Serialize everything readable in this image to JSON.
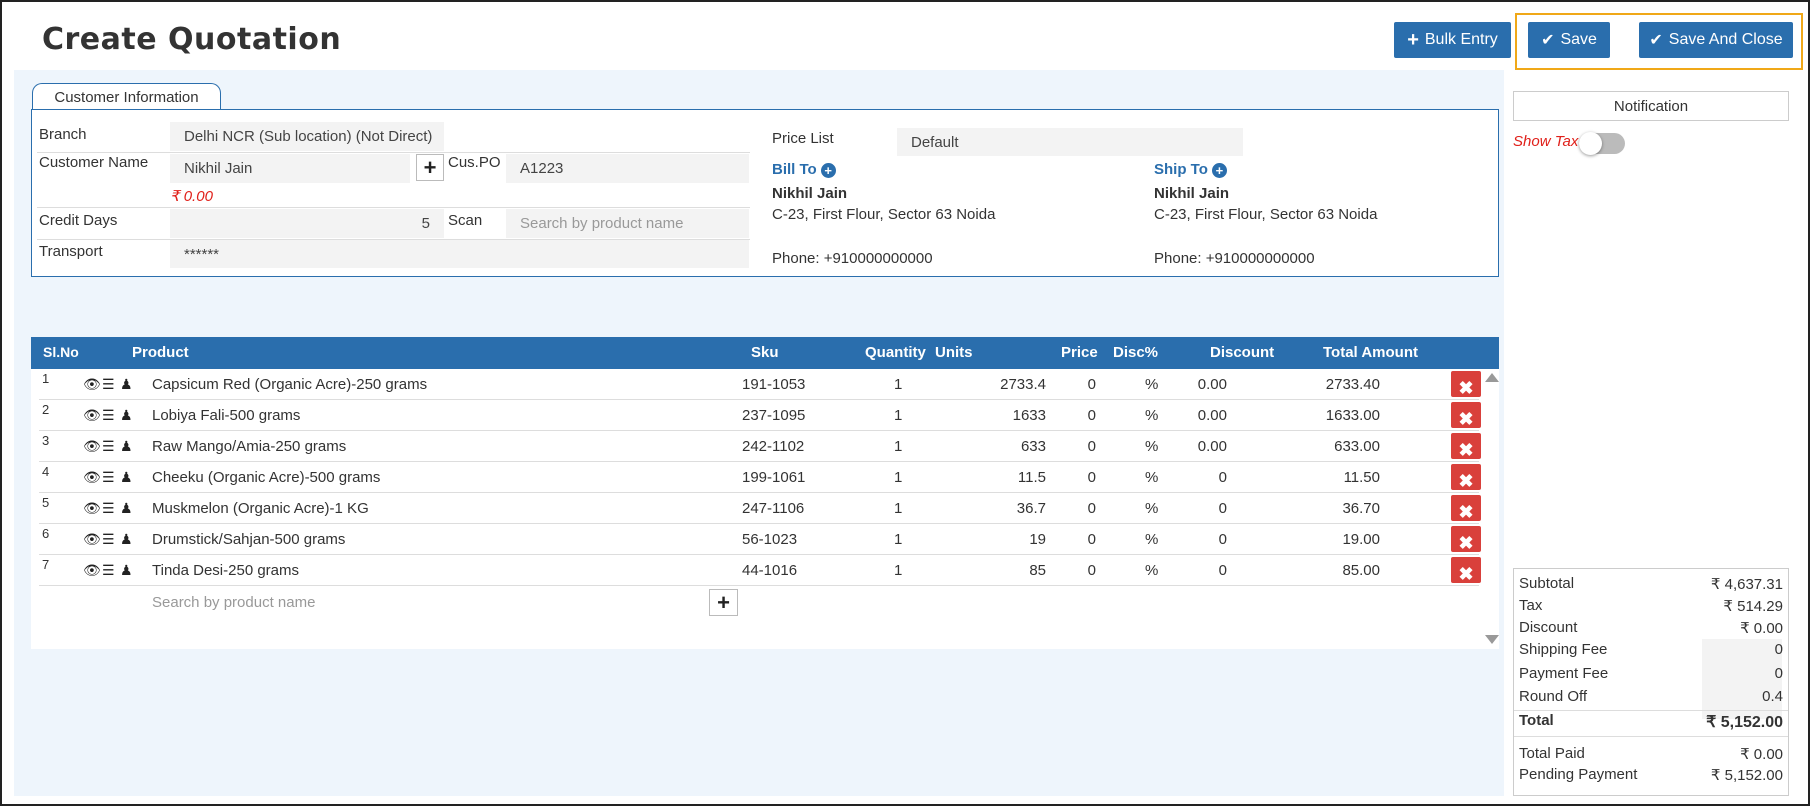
{
  "page": {
    "title": "Create Quotation"
  },
  "actions": {
    "bulk_entry": "Bulk Entry",
    "save": "Save",
    "save_close": "Save And Close"
  },
  "customer": {
    "tab_label": "Customer Information",
    "branch_label": "Branch",
    "branch_value": "Delhi NCR (Sub location) (Not Direct)",
    "name_label": "Customer Name",
    "name_value": "Nikhil Jain",
    "balance": "₹ 0.00",
    "cuspo_label": "Cus.PO",
    "cuspo_value": "A1223",
    "credit_label": "Credit Days",
    "credit_value": "5",
    "scan_label": "Scan",
    "scan_placeholder": "Search by product name",
    "transport_label": "Transport",
    "transport_value": "******",
    "pricelist_label": "Price List",
    "pricelist_value": "Default",
    "bill_to_label": "Bill To",
    "ship_to_label": "Ship To",
    "bill_name": "Nikhil Jain",
    "bill_addr": "C-23, First Flour, Sector 63 Noida",
    "bill_phone": "Phone: +910000000000",
    "ship_name": "Nikhil Jain",
    "ship_addr": "C-23, First Flour, Sector 63 Noida",
    "ship_phone": "Phone: +910000000000"
  },
  "table": {
    "headers": {
      "slno": "Sl.No",
      "product": "Product",
      "sku": "Sku",
      "quantity": "Quantity",
      "units": "Units",
      "price": "Price",
      "disc": "Disc%",
      "discount": "Discount",
      "total": "Total Amount"
    },
    "rows": [
      {
        "sl": "1",
        "product": "Capsicum Red (Organic Acre)-250 grams",
        "sku": "191-1053",
        "qty": "1",
        "price": "2733.4",
        "disc": "0",
        "pct": "%",
        "discount": "0.00",
        "total": "2733.40"
      },
      {
        "sl": "2",
        "product": "Lobiya Fali-500 grams",
        "sku": "237-1095",
        "qty": "1",
        "price": "1633",
        "disc": "0",
        "pct": "%",
        "discount": "0.00",
        "total": "1633.00"
      },
      {
        "sl": "3",
        "product": "Raw Mango/Amia-250 grams",
        "sku": "242-1102",
        "qty": "1",
        "price": "633",
        "disc": "0",
        "pct": "%",
        "discount": "0.00",
        "total": "633.00"
      },
      {
        "sl": "4",
        "product": "Cheeku (Organic Acre)-500 grams",
        "sku": "199-1061",
        "qty": "1",
        "price": "11.5",
        "disc": "0",
        "pct": "%",
        "discount": "0",
        "total": "11.50"
      },
      {
        "sl": "5",
        "product": "Muskmelon (Organic Acre)-1 KG",
        "sku": "247-1106",
        "qty": "1",
        "price": "36.7",
        "disc": "0",
        "pct": "%",
        "discount": "0",
        "total": "36.70"
      },
      {
        "sl": "6",
        "product": "Drumstick/Sahjan-500 grams",
        "sku": "56-1023",
        "qty": "1",
        "price": "19",
        "disc": "0",
        "pct": "%",
        "discount": "0",
        "total": "19.00"
      },
      {
        "sl": "7",
        "product": "Tinda Desi-250 grams",
        "sku": "44-1016",
        "qty": "1",
        "price": "85",
        "disc": "0",
        "pct": "%",
        "discount": "0",
        "total": "85.00"
      }
    ],
    "search_placeholder": "Search by product name"
  },
  "sidebar": {
    "notification": "Notification",
    "show_tax": "Show Tax",
    "show_tax_on": false
  },
  "summary": {
    "subtotal_label": "Subtotal",
    "subtotal": "₹ 4,637.31",
    "tax_label": "Tax",
    "tax": "₹ 514.29",
    "discount_label": "Discount",
    "discount": "₹ 0.00",
    "shipping_label": "Shipping Fee",
    "shipping": "0",
    "payment_label": "Payment Fee",
    "payment": "0",
    "roundoff_label": "Round Off",
    "roundoff": "0.4",
    "total_label": "Total",
    "total": "₹ 5,152.00",
    "paid_label": "Total Paid",
    "paid": "₹ 0.00",
    "pending_label": "Pending Payment",
    "pending": "₹ 5,152.00"
  },
  "colors": {
    "primary": "#2a6ead",
    "danger": "#d9403b",
    "highlight": "#f0a818",
    "panel": "#eef5fc"
  },
  "icons": [
    "plus-icon",
    "check-icon",
    "eye-icon",
    "list-icon",
    "person-icon",
    "close-icon",
    "plus-circle-icon",
    "scroll-up-icon",
    "scroll-down-icon"
  ]
}
